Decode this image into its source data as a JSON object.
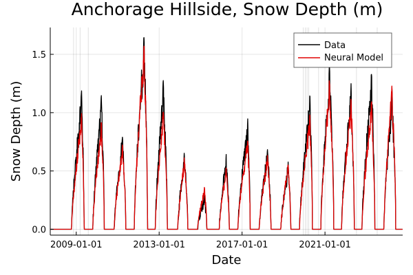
{
  "chart_data": {
    "type": "line",
    "title": "Anchorage Hillside, Snow Depth (m)",
    "xlabel": "Date",
    "ylabel": "Snow Depth (m)",
    "x_range": [
      "2007-10-01",
      "2024-10-01"
    ],
    "ylim": [
      -0.05,
      1.73
    ],
    "x_ticks": [
      "2009-01-01",
      "2013-01-01",
      "2017-01-01",
      "2021-01-01"
    ],
    "y_ticks": [
      "0.0",
      "0.5",
      "1.0",
      "1.5"
    ],
    "grid": true,
    "legend_position": "top-right",
    "colors": {
      "Data": "#000000",
      "Neural Model": "#e00000"
    },
    "vertical_markers": [
      "2008-11-15",
      "2009-03-10",
      "2009-08-01",
      "2019-12-15",
      "2020-01-20",
      "2020-02-20",
      "2020-03-20",
      "2020-09-10",
      "2022-07-10",
      "2023-07-10"
    ],
    "seasons": [
      {
        "start": "2008-10-10",
        "end": "2009-05-20",
        "peak_date": "2009-04-05",
        "data_peak": 1.17,
        "model_peak": 0.97
      },
      {
        "start": "2009-10-20",
        "end": "2010-05-10",
        "peak_date": "2010-03-20",
        "data_peak": 1.13,
        "model_peak": 0.92
      },
      {
        "start": "2010-11-01",
        "end": "2011-05-25",
        "peak_date": "2011-03-25",
        "data_peak": 0.79,
        "model_peak": 0.72
      },
      {
        "start": "2011-10-20",
        "end": "2012-06-10",
        "peak_date": "2012-04-10",
        "data_peak": 1.68,
        "model_peak": 1.59
      },
      {
        "start": "2012-10-25",
        "end": "2013-05-25",
        "peak_date": "2013-03-15",
        "data_peak": 1.27,
        "model_peak": 1.02
      },
      {
        "start": "2013-11-25",
        "end": "2014-05-20",
        "peak_date": "2014-03-20",
        "data_peak": 0.64,
        "model_peak": 0.6
      },
      {
        "start": "2014-11-10",
        "end": "2015-04-20",
        "peak_date": "2015-03-10",
        "data_peak": 0.29,
        "model_peak": 0.34
      },
      {
        "start": "2015-11-25",
        "end": "2016-05-20",
        "peak_date": "2016-03-25",
        "data_peak": 0.63,
        "model_peak": 0.52
      },
      {
        "start": "2016-10-20",
        "end": "2017-05-25",
        "peak_date": "2017-04-10",
        "data_peak": 0.93,
        "model_peak": 0.77
      },
      {
        "start": "2017-10-30",
        "end": "2018-05-25",
        "peak_date": "2018-03-25",
        "data_peak": 0.69,
        "model_peak": 0.63
      },
      {
        "start": "2018-11-15",
        "end": "2019-05-10",
        "peak_date": "2019-03-25",
        "data_peak": 0.56,
        "model_peak": 0.56
      },
      {
        "start": "2019-10-10",
        "end": "2020-05-25",
        "peak_date": "2020-04-10",
        "data_peak": 1.14,
        "model_peak": 0.97
      },
      {
        "start": "2020-10-20",
        "end": "2021-06-05",
        "peak_date": "2021-03-20",
        "data_peak": 1.43,
        "model_peak": 1.27
      },
      {
        "start": "2021-10-20",
        "end": "2022-06-01",
        "peak_date": "2022-04-05",
        "data_peak": 1.22,
        "model_peak": 1.12
      },
      {
        "start": "2022-10-15",
        "end": "2023-05-30",
        "peak_date": "2023-04-01",
        "data_peak": 1.34,
        "model_peak": 1.1
      },
      {
        "start": "2023-11-05",
        "end": "2024-06-01",
        "peak_date": "2024-03-25",
        "data_peak": 1.2,
        "model_peak": 1.23
      }
    ],
    "series": [
      {
        "name": "Data"
      },
      {
        "name": "Neural Model"
      }
    ]
  }
}
